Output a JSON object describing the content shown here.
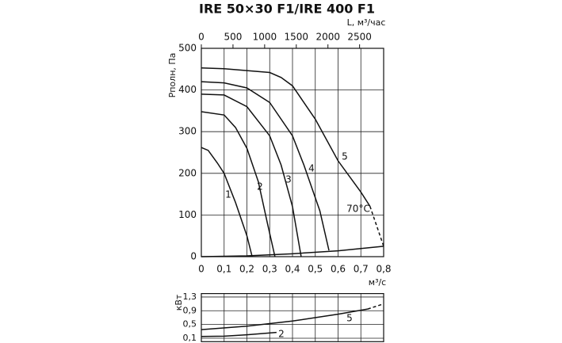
{
  "chart_data": [
    {
      "type": "line",
      "title": "IRE 50×30 F1/IRE 400 F1",
      "ylabel": "Pполн, Па",
      "xlabel": "м³/с",
      "x2label": "L, м³/час",
      "annotation": "70°C",
      "xlim": [
        0,
        0.8
      ],
      "ylim": [
        0,
        500
      ],
      "x2lim": [
        0,
        2880
      ],
      "xticks": [
        0,
        {
          "value": 0.1,
          "label": "0,1"
        },
        {
          "value": 0.2,
          "label": "0,2"
        },
        {
          "value": 0.3,
          "label": "0,3"
        },
        {
          "value": 0.4,
          "label": "0,4"
        },
        {
          "value": 0.5,
          "label": "0,5"
        },
        {
          "value": 0.6,
          "label": "0,6"
        },
        {
          "value": 0.7,
          "label": "0,7"
        },
        {
          "value": 0.8,
          "label": "0,8"
        }
      ],
      "yticks": [
        0,
        100,
        200,
        300,
        400,
        500
      ],
      "x2ticks": [
        0,
        500,
        1000,
        1500,
        2000,
        2500
      ],
      "grid": true,
      "series": [
        {
          "name": "1",
          "color": "#111",
          "x": [
            0,
            0.03,
            0.07,
            0.1,
            0.15,
            0.2,
            0.223
          ],
          "values": [
            262,
            255,
            225,
            200,
            130,
            50,
            0
          ]
        },
        {
          "name": "2",
          "color": "#111",
          "x": [
            0,
            0.1,
            0.15,
            0.2,
            0.25,
            0.29,
            0.323
          ],
          "values": [
            348,
            340,
            310,
            260,
            180,
            80,
            0
          ]
        },
        {
          "name": "3",
          "color": "#111",
          "x": [
            0,
            0.1,
            0.2,
            0.3,
            0.35,
            0.4,
            0.438
          ],
          "values": [
            390,
            388,
            360,
            290,
            220,
            120,
            0
          ]
        },
        {
          "name": "4",
          "color": "#111",
          "x": [
            0,
            0.1,
            0.2,
            0.3,
            0.4,
            0.45,
            0.52,
            0.56
          ],
          "values": [
            420,
            417,
            405,
            370,
            290,
            220,
            110,
            15
          ]
        },
        {
          "name": "5",
          "color": "#111",
          "x": [
            0,
            0.1,
            0.3,
            0.35,
            0.4,
            0.5,
            0.6,
            0.7,
            0.74
          ],
          "values": [
            453,
            451,
            442,
            430,
            410,
            330,
            230,
            155,
            121
          ]
        },
        {
          "color": "#111",
          "dashed": true,
          "x": [
            0.74,
            0.8
          ],
          "values": [
            121,
            25
          ]
        },
        {
          "color": "#111",
          "x": [
            0,
            0.2,
            0.4,
            0.6,
            0.8
          ],
          "values": [
            0,
            2,
            7,
            14,
            25
          ]
        }
      ]
    },
    {
      "type": "line",
      "ylabel": "кВт",
      "xlim": [
        0,
        0.8
      ],
      "ylim": [
        0,
        1.4
      ],
      "xticks": [
        0,
        0.1,
        0.2,
        0.3,
        0.4,
        0.5,
        0.6,
        0.7,
        0.8
      ],
      "yticks": [
        {
          "value": 0.1,
          "label": "0,1"
        },
        {
          "value": 0.5,
          "label": "0,5"
        },
        {
          "value": 0.9,
          "label": "0,9"
        },
        {
          "value": 1.3,
          "label": "1,3"
        }
      ],
      "grid": true,
      "series": [
        {
          "name": "5",
          "color": "#111",
          "x": [
            0,
            0.2,
            0.4,
            0.6,
            0.73
          ],
          "values": [
            0.35,
            0.45,
            0.6,
            0.8,
            0.95
          ]
        },
        {
          "color": "#111",
          "dashed": true,
          "x": [
            0.73,
            0.8
          ],
          "values": [
            0.95,
            1.1
          ]
        },
        {
          "name": "2",
          "color": "#111",
          "x": [
            0,
            0.1,
            0.2,
            0.33
          ],
          "values": [
            0.15,
            0.16,
            0.2,
            0.27
          ]
        }
      ]
    }
  ]
}
